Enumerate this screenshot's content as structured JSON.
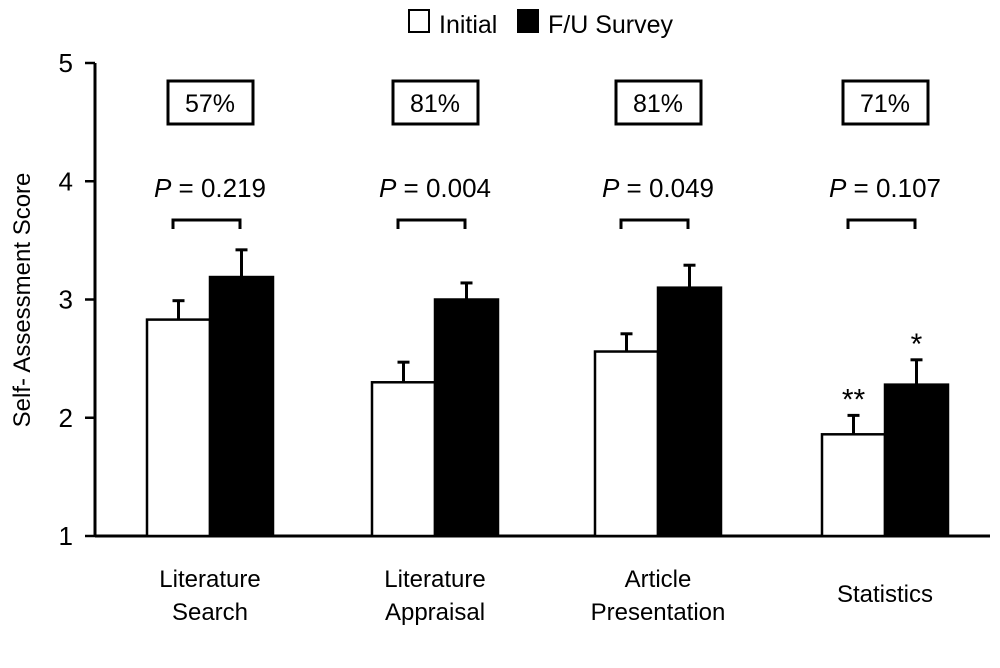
{
  "chart_data": {
    "type": "bar",
    "title": "",
    "xlabel": "",
    "ylabel": "Self- Assessment  Score",
    "ylim": [
      1,
      5
    ],
    "yticks": [
      1,
      2,
      3,
      4,
      5
    ],
    "grid": false,
    "legend_position": "top-center",
    "categories": [
      {
        "lines": [
          "Literature",
          "Search"
        ]
      },
      {
        "lines": [
          "Literature",
          "Appraisal"
        ]
      },
      {
        "lines": [
          "Article",
          "Presentation"
        ]
      },
      {
        "lines": [
          "Statistics"
        ]
      }
    ],
    "series": [
      {
        "name": "Initial",
        "color": "#ffffff",
        "values": [
          2.83,
          2.3,
          2.56,
          1.86
        ],
        "errors": [
          0.16,
          0.17,
          0.15,
          0.16
        ],
        "sig": [
          "",
          "",
          "",
          "**"
        ]
      },
      {
        "name": "F/U Survey",
        "color": "#000000",
        "values": [
          3.19,
          3.0,
          3.1,
          2.28
        ],
        "errors": [
          0.23,
          0.14,
          0.19,
          0.21
        ],
        "sig": [
          "",
          "",
          "",
          "*"
        ]
      }
    ],
    "pvalues": [
      "= 0.219",
      "= 0.004",
      "= 0.049",
      "= 0.107"
    ],
    "p_label": "P",
    "percent_boxes": [
      "57%",
      "81%",
      "81%",
      "71%"
    ]
  }
}
